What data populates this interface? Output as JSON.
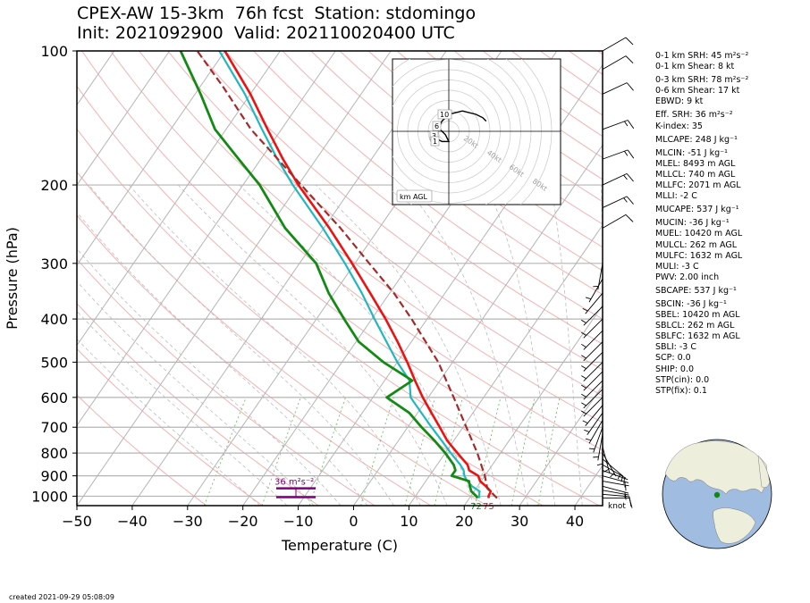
{
  "title": {
    "line1": "CPEX-AW 15-3km  76h fcst  Station: stdomingo",
    "line2": "Init: 2021092900  Valid: 202110020400 UTC"
  },
  "created": "created 2021-09-29 05:08:09",
  "indices": [
    {
      "label": "0-1 km SRH: 45 m²s⁻²",
      "gap": false
    },
    {
      "label": "0-1 km Shear: 8 kt",
      "gap": false
    },
    {
      "label": "0-3 km SRH: 78 m²s⁻²",
      "gap": true
    },
    {
      "label": "0-6 km Shear: 17 kt",
      "gap": false
    },
    {
      "label": "EBWD: 9 kt",
      "gap": false
    },
    {
      "label": "Eff. SRH: 36 m²s⁻²",
      "gap": true
    },
    {
      "label": "K-index: 35",
      "gap": false
    },
    {
      "label": "MLCAPE: 248 J kg⁻¹",
      "gap": true
    },
    {
      "label": "MLCIN: -51 J kg⁻¹",
      "gap": true
    },
    {
      "label": "MLEL: 8493 m AGL",
      "gap": false
    },
    {
      "label": "MLLCL: 740 m AGL",
      "gap": false
    },
    {
      "label": "MLLFC: 2071 m AGL",
      "gap": false
    },
    {
      "label": "MLLI: -2 C",
      "gap": false
    },
    {
      "label": "MUCAPE: 537 J kg⁻¹",
      "gap": true
    },
    {
      "label": "MUCIN: -36 J kg⁻¹",
      "gap": true
    },
    {
      "label": "MUEL: 10420 m AGL",
      "gap": false
    },
    {
      "label": "MULCL: 262 m AGL",
      "gap": false
    },
    {
      "label": "MULFC: 1632 m AGL",
      "gap": false
    },
    {
      "label": "MULI: -3 C",
      "gap": false
    },
    {
      "label": "PWV: 2.00 inch",
      "gap": false
    },
    {
      "label": "SBCAPE: 537 J kg⁻¹",
      "gap": true
    },
    {
      "label": "SBCIN: -36 J kg⁻¹",
      "gap": true
    },
    {
      "label": "SBEL: 10420 m AGL",
      "gap": false
    },
    {
      "label": "SBLCL: 262 m AGL",
      "gap": false
    },
    {
      "label": "SBLFC: 1632 m AGL",
      "gap": false
    },
    {
      "label": "SBLI: -3 C",
      "gap": false
    },
    {
      "label": "SCP: 0.0",
      "gap": false
    },
    {
      "label": "SHIP: 0.0",
      "gap": false
    },
    {
      "label": "STP(cin): 0.0",
      "gap": false
    },
    {
      "label": "STP(fix): 0.1",
      "gap": false
    }
  ],
  "chart_data": {
    "type": "line",
    "xlabel": "Temperature (C)",
    "ylabel": "Pressure (hPa)",
    "xlim": [
      -50,
      45
    ],
    "ylim": [
      1050,
      100
    ],
    "y_scale": "log",
    "skew": "skew-T",
    "xticks": [
      "−50",
      "−40",
      "−30",
      "−20",
      "−10",
      "0",
      "10",
      "20",
      "30",
      "40"
    ],
    "yticks": [
      "100",
      "200",
      "300",
      "400",
      "500",
      "600",
      "700",
      "800",
      "900",
      "1000"
    ],
    "colors": {
      "temperature": "#ee1111",
      "dewpoint": "#138a13",
      "wetbulb": "#20b8c0",
      "parcel": "#a52a2a",
      "eff_layer": "#800080"
    },
    "series": [
      {
        "key": "temperature",
        "points": [
          [
            1010,
            23.5
          ],
          [
            1000,
            23.2
          ],
          [
            975,
            23.0
          ],
          [
            950,
            21.5
          ],
          [
            925,
            19.8
          ],
          [
            900,
            18.8
          ],
          [
            875,
            16.5
          ],
          [
            850,
            15.5
          ],
          [
            800,
            12.2
          ],
          [
            750,
            8.8
          ],
          [
            700,
            5.8
          ],
          [
            650,
            2.5
          ],
          [
            600,
            -1.0
          ],
          [
            550,
            -4.5
          ],
          [
            500,
            -8.2
          ],
          [
            450,
            -12.5
          ],
          [
            400,
            -17.5
          ],
          [
            350,
            -23.5
          ],
          [
            300,
            -30.5
          ],
          [
            250,
            -39.0
          ],
          [
            200,
            -50.0
          ],
          [
            175,
            -56.0
          ],
          [
            150,
            -62.5
          ],
          [
            125,
            -70.0
          ],
          [
            100,
            -80.0
          ]
        ]
      },
      {
        "key": "wetbulb",
        "points": [
          [
            1010,
            21.8
          ],
          [
            1000,
            21.5
          ],
          [
            975,
            21.0
          ],
          [
            950,
            19.0
          ],
          [
            925,
            17.5
          ],
          [
            900,
            16.3
          ],
          [
            875,
            15.5
          ],
          [
            850,
            14.2
          ],
          [
            800,
            11.0
          ],
          [
            750,
            7.8
          ],
          [
            700,
            4.3
          ],
          [
            650,
            0.7
          ],
          [
            600,
            -3.2
          ],
          [
            550,
            -5.5
          ],
          [
            500,
            -10.0
          ],
          [
            450,
            -14.5
          ],
          [
            400,
            -19.5
          ],
          [
            350,
            -25.0
          ],
          [
            300,
            -31.8
          ],
          [
            250,
            -40.2
          ],
          [
            200,
            -51.0
          ],
          [
            175,
            -57.0
          ],
          [
            150,
            -63.5
          ],
          [
            125,
            -71.0
          ],
          [
            100,
            -81.0
          ]
        ]
      },
      {
        "key": "dewpoint",
        "points": [
          [
            1010,
            21.5
          ],
          [
            1000,
            21.0
          ],
          [
            975,
            19.5
          ],
          [
            950,
            18.6
          ],
          [
            925,
            17.8
          ],
          [
            900,
            14.0
          ],
          [
            875,
            14.0
          ],
          [
            850,
            13.0
          ],
          [
            800,
            10.0
          ],
          [
            750,
            6.5
          ],
          [
            700,
            2.5
          ],
          [
            650,
            -1.5
          ],
          [
            600,
            -7.5
          ],
          [
            550,
            -5.0
          ],
          [
            500,
            -12.5
          ],
          [
            450,
            -19.5
          ],
          [
            400,
            -25.0
          ],
          [
            350,
            -31.0
          ],
          [
            300,
            -37.0
          ],
          [
            250,
            -47.0
          ],
          [
            200,
            -57.0
          ],
          [
            175,
            -64.0
          ],
          [
            150,
            -72.0
          ],
          [
            125,
            -79.0
          ],
          [
            100,
            -88.0
          ]
        ]
      },
      {
        "key": "parcel",
        "points": [
          [
            1010,
            25.0
          ],
          [
            960,
            22.0
          ],
          [
            900,
            20.0
          ],
          [
            800,
            15.8
          ],
          [
            700,
            10.6
          ],
          [
            600,
            4.6
          ],
          [
            500,
            -2.6
          ],
          [
            400,
            -12.8
          ],
          [
            350,
            -19.2
          ],
          [
            300,
            -27.4
          ],
          [
            250,
            -37.0
          ],
          [
            200,
            -49.5
          ],
          [
            150,
            -65.5
          ],
          [
            120,
            -76.0
          ],
          [
            100,
            -85.0
          ]
        ]
      }
    ],
    "surface_labels": [
      "72",
      "75"
    ],
    "effective_layer": {
      "label": "36 m²s⁻²",
      "p_top": 960,
      "p_bottom": 1005
    },
    "barb_unit": "knot",
    "wind_barbs": [
      {
        "p": 1010,
        "dir": 90,
        "spd": 8
      },
      {
        "p": 990,
        "dir": 95,
        "spd": 8
      },
      {
        "p": 970,
        "dir": 100,
        "spd": 7
      },
      {
        "p": 950,
        "dir": 105,
        "spd": 7
      },
      {
        "p": 925,
        "dir": 100,
        "spd": 7
      },
      {
        "p": 900,
        "dir": 105,
        "spd": 6
      },
      {
        "p": 875,
        "dir": 110,
        "spd": 6
      },
      {
        "p": 850,
        "dir": 120,
        "spd": 6
      },
      {
        "p": 825,
        "dir": 130,
        "spd": 6
      },
      {
        "p": 800,
        "dir": 150,
        "spd": 6
      },
      {
        "p": 775,
        "dir": 165,
        "spd": 6
      },
      {
        "p": 750,
        "dir": 180,
        "spd": 6
      },
      {
        "p": 725,
        "dir": 190,
        "spd": 6
      },
      {
        "p": 700,
        "dir": 200,
        "spd": 6
      },
      {
        "p": 675,
        "dir": 210,
        "spd": 6
      },
      {
        "p": 650,
        "dir": 215,
        "spd": 6
      },
      {
        "p": 625,
        "dir": 220,
        "spd": 6
      },
      {
        "p": 600,
        "dir": 225,
        "spd": 6
      },
      {
        "p": 575,
        "dir": 225,
        "spd": 7
      },
      {
        "p": 550,
        "dir": 225,
        "spd": 6
      },
      {
        "p": 525,
        "dir": 225,
        "spd": 6
      },
      {
        "p": 500,
        "dir": 225,
        "spd": 6
      },
      {
        "p": 475,
        "dir": 225,
        "spd": 7
      },
      {
        "p": 450,
        "dir": 225,
        "spd": 7
      },
      {
        "p": 425,
        "dir": 225,
        "spd": 7
      },
      {
        "p": 400,
        "dir": 225,
        "spd": 7
      },
      {
        "p": 375,
        "dir": 225,
        "spd": 7
      },
      {
        "p": 350,
        "dir": 220,
        "spd": 7
      },
      {
        "p": 325,
        "dir": 210,
        "spd": 6
      },
      {
        "p": 300,
        "dir": 190,
        "spd": 5
      },
      {
        "p": 250,
        "dir": 60,
        "spd": 10
      },
      {
        "p": 225,
        "dir": 65,
        "spd": 15
      },
      {
        "p": 200,
        "dir": 65,
        "spd": 15
      },
      {
        "p": 175,
        "dir": 70,
        "spd": 15
      },
      {
        "p": 150,
        "dir": 70,
        "spd": 15
      },
      {
        "p": 125,
        "dir": 65,
        "spd": 10
      },
      {
        "p": 110,
        "dir": 60,
        "spd": 10
      },
      {
        "p": 100,
        "dir": 60,
        "spd": 10
      }
    ],
    "hodograph": {
      "ring_labels": [
        "20kt",
        "40kt",
        "60kt",
        "80kt"
      ],
      "height_labels": [
        "10",
        "6",
        "3",
        "1"
      ],
      "footnote": "km AGL",
      "trace": [
        [
          -4,
          -2
        ],
        [
          -2,
          -3
        ],
        [
          0,
          -3
        ],
        [
          -1,
          -1
        ],
        [
          -3,
          1
        ],
        [
          -2,
          3
        ],
        [
          0,
          5
        ],
        [
          4,
          6
        ],
        [
          8,
          5
        ],
        [
          10,
          4
        ],
        [
          11,
          3
        ]
      ]
    }
  }
}
